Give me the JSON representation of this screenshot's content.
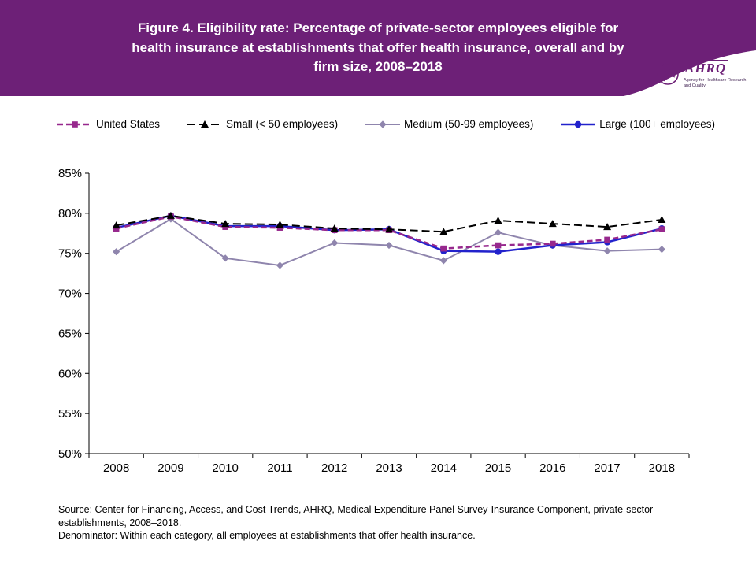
{
  "header": {
    "title": "Figure 4. Eligibility rate: Percentage of private-sector employees eligible for health insurance at establishments that offer health insurance, overall and by firm size, 2008–2018",
    "logo": {
      "name": "AHRQ",
      "subtitle": "Agency for Healthcare Research and Quality"
    },
    "banner_color": "#6d2077"
  },
  "chart_data": {
    "type": "line",
    "x": [
      "2008",
      "2009",
      "2010",
      "2011",
      "2012",
      "2013",
      "2014",
      "2015",
      "2016",
      "2017",
      "2018"
    ],
    "ylim": [
      50,
      85
    ],
    "yticks": [
      50,
      55,
      60,
      65,
      70,
      75,
      80,
      85
    ],
    "ytick_suffix": "%",
    "grid": false,
    "legend_position": "top",
    "series": [
      {
        "name": "United States",
        "color": "#97288d",
        "marker": "square",
        "dash": "7 4",
        "width": 2.5,
        "values": [
          78.1,
          79.6,
          78.3,
          78.2,
          77.9,
          77.9,
          75.6,
          76.0,
          76.2,
          76.7,
          78.0
        ]
      },
      {
        "name": "Small (< 50 employees)",
        "color": "#000000",
        "marker": "triangle",
        "dash": "10 5",
        "width": 2,
        "values": [
          78.5,
          79.7,
          78.7,
          78.6,
          78.1,
          78.0,
          77.7,
          79.1,
          78.7,
          78.3,
          79.2
        ]
      },
      {
        "name": "Medium (50-99 employees)",
        "color": "#8f85ad",
        "marker": "diamond",
        "dash": null,
        "width": 2,
        "values": [
          75.2,
          79.3,
          74.4,
          73.5,
          76.3,
          76.0,
          74.1,
          77.6,
          76.0,
          75.3,
          75.5
        ]
      },
      {
        "name": "Large (100+ employees)",
        "color": "#2222cc",
        "marker": "circle",
        "dash": null,
        "width": 2.5,
        "values": [
          78.2,
          79.7,
          78.4,
          78.4,
          77.9,
          78.0,
          75.3,
          75.2,
          76.0,
          76.4,
          78.1
        ]
      }
    ]
  },
  "footer": {
    "source": "Source: Center for Financing, Access, and Cost Trends, AHRQ, Medical Expenditure Panel Survey-Insurance Component, private-sector establishments, 2008–2018.",
    "denominator": "Denominator: Within each category, all employees at establishments that offer health insurance."
  }
}
